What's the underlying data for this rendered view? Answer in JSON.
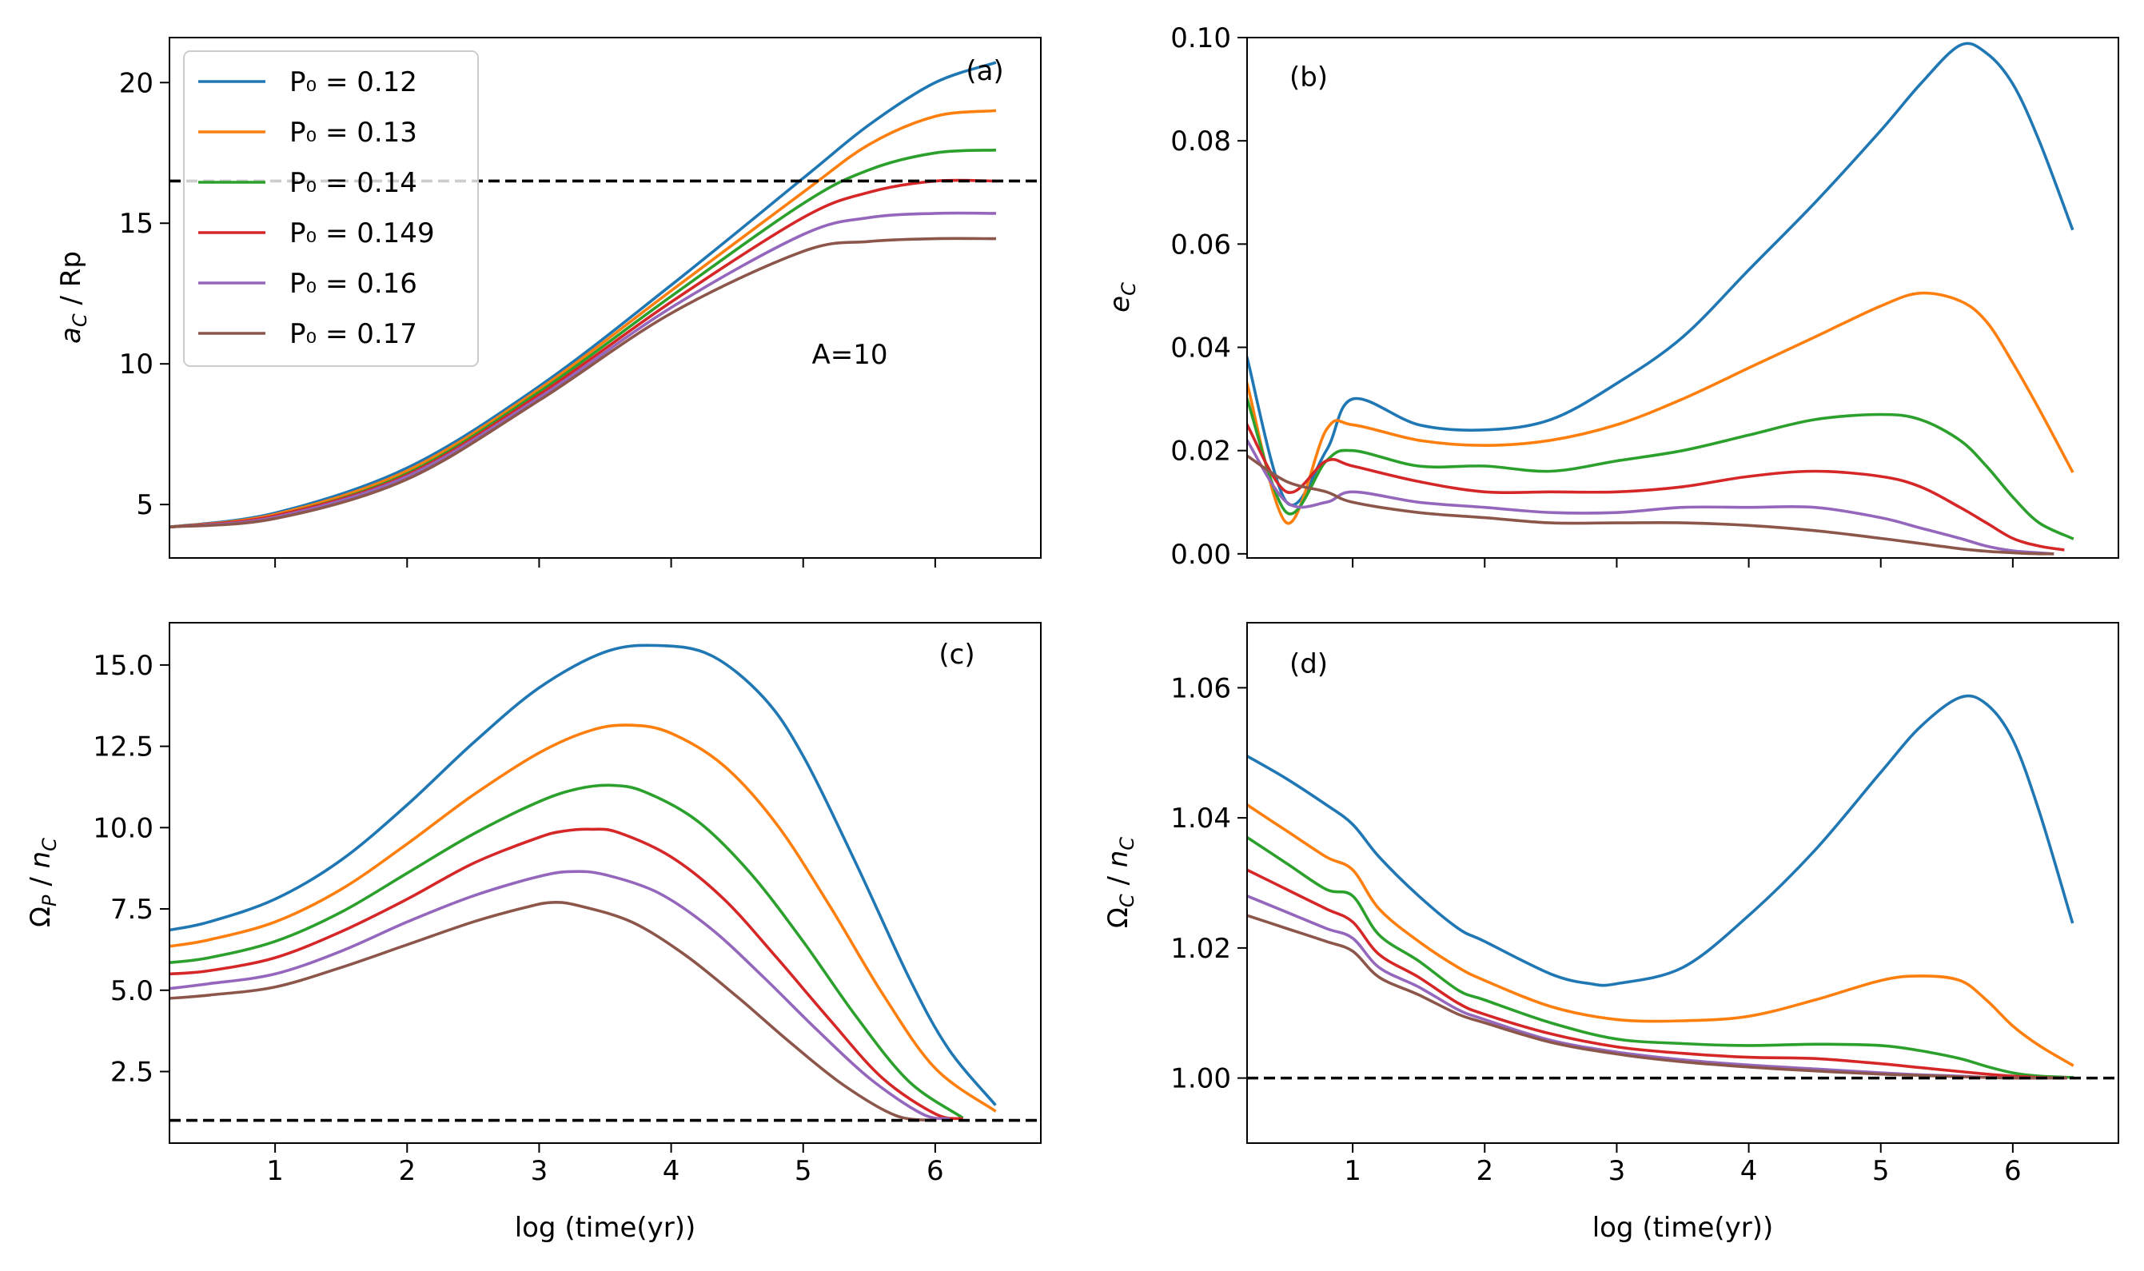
{
  "colors": {
    "P0=0.12": "#1f77b4",
    "P0=0.13": "#ff7f0e",
    "P0=0.14": "#2ca02c",
    "P0=0.149": "#d62728",
    "P0=0.16": "#9467bd",
    "P0=0.17": "#8c564b",
    "reference_line": "#000000"
  },
  "chart_data": [
    {
      "panel": "(a)",
      "type": "line",
      "annotation": "A=10",
      "xlabel": "",
      "ylabel": "a_C / Rp",
      "xlim": [
        0.2,
        6.8
      ],
      "ylim": [
        3.1,
        21.6
      ],
      "xticks": [
        1,
        2,
        3,
        4,
        5,
        6
      ],
      "xtick_labels": [
        "",
        "",
        "",
        "",
        "",
        ""
      ],
      "yticks": [
        5,
        10,
        15,
        20
      ],
      "ytick_labels": [
        "5",
        "10",
        "15",
        "20"
      ],
      "reference_line": {
        "y": 16.5,
        "style": "dashed"
      },
      "legend": {
        "placement": "top-left",
        "entries": [
          "P₀ = 0.12",
          "P₀ = 0.13",
          "P₀ = 0.14",
          "P₀ = 0.149",
          "P₀ = 0.16",
          "P₀ = 0.17"
        ]
      },
      "series": [
        {
          "name": "P₀ = 0.12",
          "x": [
            0.2,
            1,
            2,
            3,
            4,
            5,
            5.5,
            6,
            6.45
          ],
          "y": [
            4.2,
            4.7,
            6.3,
            9.2,
            12.8,
            16.6,
            18.5,
            20.0,
            20.7
          ]
        },
        {
          "name": "P₀ = 0.13",
          "x": [
            0.2,
            1,
            2,
            3,
            4,
            5,
            5.5,
            6,
            6.45
          ],
          "y": [
            4.2,
            4.65,
            6.2,
            9.1,
            12.6,
            16.1,
            17.8,
            18.8,
            19.0
          ]
        },
        {
          "name": "P₀ = 0.14",
          "x": [
            0.2,
            1,
            2,
            3,
            4,
            5,
            5.5,
            6,
            6.45
          ],
          "y": [
            4.2,
            4.6,
            6.1,
            9.0,
            12.4,
            15.7,
            16.9,
            17.5,
            17.6
          ]
        },
        {
          "name": "P₀ = 0.149",
          "x": [
            0.2,
            1,
            2,
            3,
            4,
            5,
            5.5,
            6,
            6.45
          ],
          "y": [
            4.2,
            4.6,
            6.05,
            8.9,
            12.2,
            15.2,
            16.1,
            16.5,
            16.5
          ]
        },
        {
          "name": "P₀ = 0.16",
          "x": [
            0.2,
            1,
            2,
            3,
            4,
            5,
            5.5,
            6,
            6.45
          ],
          "y": [
            4.2,
            4.55,
            6.0,
            8.8,
            12.0,
            14.6,
            15.2,
            15.35,
            15.35
          ]
        },
        {
          "name": "P₀ = 0.17",
          "x": [
            0.2,
            1,
            2,
            3,
            4,
            5,
            5.5,
            6,
            6.45
          ],
          "y": [
            4.2,
            4.5,
            5.9,
            8.7,
            11.8,
            14.0,
            14.35,
            14.45,
            14.45
          ]
        }
      ]
    },
    {
      "panel": "(b)",
      "type": "line",
      "xlabel": "",
      "ylabel": "e_C",
      "xlim": [
        0.2,
        6.8
      ],
      "ylim": [
        -0.0008,
        0.1
      ],
      "xticks": [
        1,
        2,
        3,
        4,
        5,
        6
      ],
      "xtick_labels": [
        "",
        "",
        "",
        "",
        "",
        ""
      ],
      "yticks": [
        0.0,
        0.02,
        0.04,
        0.06,
        0.08,
        0.1
      ],
      "ytick_labels": [
        "0.00",
        "0.02",
        "0.04",
        "0.06",
        "0.08",
        "0.10"
      ],
      "series": [
        {
          "name": "P₀ = 0.12",
          "x": [
            0.2,
            0.5,
            0.8,
            1.0,
            1.5,
            2.0,
            2.5,
            3.0,
            3.5,
            4.0,
            4.5,
            5.0,
            5.3,
            5.6,
            5.8,
            6.0,
            6.2,
            6.45
          ],
          "y": [
            0.038,
            0.01,
            0.02,
            0.03,
            0.025,
            0.024,
            0.026,
            0.033,
            0.042,
            0.055,
            0.068,
            0.082,
            0.091,
            0.0985,
            0.097,
            0.091,
            0.08,
            0.063
          ]
        },
        {
          "name": "P₀ = 0.13",
          "x": [
            0.2,
            0.5,
            0.8,
            1.0,
            1.5,
            2.0,
            2.5,
            3.0,
            3.5,
            4.0,
            4.5,
            5.0,
            5.3,
            5.6,
            5.8,
            6.0,
            6.2,
            6.45
          ],
          "y": [
            0.033,
            0.006,
            0.024,
            0.025,
            0.022,
            0.021,
            0.022,
            0.025,
            0.03,
            0.036,
            0.042,
            0.048,
            0.0505,
            0.049,
            0.045,
            0.037,
            0.028,
            0.016
          ]
        },
        {
          "name": "P₀ = 0.14",
          "x": [
            0.2,
            0.5,
            0.8,
            1.0,
            1.5,
            2.0,
            2.5,
            3.0,
            3.5,
            4.0,
            4.5,
            5.0,
            5.3,
            5.6,
            5.8,
            6.0,
            6.2,
            6.45
          ],
          "y": [
            0.03,
            0.008,
            0.018,
            0.02,
            0.017,
            0.017,
            0.016,
            0.018,
            0.02,
            0.023,
            0.026,
            0.027,
            0.026,
            0.022,
            0.017,
            0.011,
            0.006,
            0.003
          ]
        },
        {
          "name": "P₀ = 0.149",
          "x": [
            0.2,
            0.5,
            0.8,
            1.0,
            1.5,
            2.0,
            2.5,
            3.0,
            3.5,
            4.0,
            4.5,
            5.0,
            5.3,
            5.6,
            5.8,
            6.0,
            6.2,
            6.38
          ],
          "y": [
            0.025,
            0.012,
            0.018,
            0.017,
            0.014,
            0.012,
            0.012,
            0.012,
            0.013,
            0.015,
            0.016,
            0.015,
            0.013,
            0.009,
            0.006,
            0.003,
            0.0015,
            0.0008
          ]
        },
        {
          "name": "P₀ = 0.16",
          "x": [
            0.2,
            0.5,
            0.8,
            1.0,
            1.5,
            2.0,
            2.5,
            3.0,
            3.5,
            4.0,
            4.5,
            5.0,
            5.3,
            5.6,
            5.8,
            6.0,
            6.2,
            6.3
          ],
          "y": [
            0.022,
            0.01,
            0.01,
            0.012,
            0.01,
            0.009,
            0.008,
            0.008,
            0.009,
            0.009,
            0.009,
            0.007,
            0.005,
            0.003,
            0.0015,
            0.0006,
            0.0002,
            0.0
          ]
        },
        {
          "name": "P₀ = 0.17",
          "x": [
            0.2,
            0.5,
            0.8,
            1.0,
            1.5,
            2.0,
            2.5,
            3.0,
            3.5,
            4.0,
            4.5,
            5.0,
            5.3,
            5.6,
            5.8,
            6.0,
            6.2,
            6.3
          ],
          "y": [
            0.019,
            0.014,
            0.012,
            0.01,
            0.008,
            0.007,
            0.006,
            0.006,
            0.006,
            0.0055,
            0.0045,
            0.003,
            0.002,
            0.001,
            0.0005,
            0.0002,
            0.0,
            0.0
          ]
        }
      ]
    },
    {
      "panel": "(c)",
      "type": "line",
      "xlabel": "log (time(yr))",
      "ylabel": "Ω_P / n_C",
      "xlim": [
        0.2,
        6.8
      ],
      "ylim": [
        0.3,
        16.3
      ],
      "xticks": [
        1,
        2,
        3,
        4,
        5,
        6
      ],
      "xtick_labels": [
        "1",
        "2",
        "3",
        "4",
        "5",
        "6"
      ],
      "yticks": [
        2.5,
        5.0,
        7.5,
        10.0,
        12.5,
        15.0
      ],
      "ytick_labels": [
        "2.5",
        "5.0",
        "7.5",
        "10.0",
        "12.5",
        "15.0"
      ],
      "reference_line": {
        "y": 1.0,
        "style": "dashed"
      },
      "series": [
        {
          "name": "P₀ = 0.12",
          "x": [
            0.2,
            0.5,
            1.0,
            1.5,
            2.0,
            2.5,
            3.0,
            3.5,
            3.9,
            4.3,
            4.7,
            5.0,
            5.4,
            5.8,
            6.1,
            6.45
          ],
          "y": [
            6.85,
            7.1,
            7.8,
            9.0,
            10.7,
            12.6,
            14.3,
            15.4,
            15.6,
            15.3,
            14.0,
            12.2,
            8.9,
            5.4,
            3.2,
            1.5
          ]
        },
        {
          "name": "P₀ = 0.13",
          "x": [
            0.2,
            0.5,
            1.0,
            1.5,
            2.0,
            2.5,
            3.0,
            3.4,
            3.7,
            4.0,
            4.4,
            4.8,
            5.2,
            5.6,
            6.0,
            6.45
          ],
          "y": [
            6.35,
            6.55,
            7.1,
            8.1,
            9.5,
            11.0,
            12.3,
            13.0,
            13.15,
            12.9,
            11.9,
            10.1,
            7.6,
            4.9,
            2.6,
            1.3
          ]
        },
        {
          "name": "P₀ = 0.14",
          "x": [
            0.2,
            0.5,
            1.0,
            1.5,
            2.0,
            2.5,
            3.0,
            3.3,
            3.55,
            3.8,
            4.2,
            4.6,
            5.0,
            5.4,
            5.8,
            6.2
          ],
          "y": [
            5.85,
            6.0,
            6.5,
            7.4,
            8.6,
            9.8,
            10.8,
            11.2,
            11.3,
            11.1,
            10.2,
            8.6,
            6.5,
            4.2,
            2.2,
            1.1
          ]
        },
        {
          "name": "P₀ = 0.149",
          "x": [
            0.2,
            0.5,
            1.0,
            1.5,
            2.0,
            2.5,
            3.0,
            3.2,
            3.4,
            3.6,
            4.0,
            4.4,
            4.8,
            5.2,
            5.6,
            6.0,
            6.2
          ],
          "y": [
            5.5,
            5.6,
            6.0,
            6.8,
            7.8,
            8.9,
            9.7,
            9.9,
            9.95,
            9.85,
            9.1,
            7.8,
            6.0,
            4.1,
            2.3,
            1.2,
            1.05
          ]
        },
        {
          "name": "P₀ = 0.16",
          "x": [
            0.2,
            0.5,
            1.0,
            1.5,
            2.0,
            2.5,
            3.0,
            3.25,
            3.5,
            3.9,
            4.3,
            4.7,
            5.1,
            5.5,
            5.9,
            6.1
          ],
          "y": [
            5.05,
            5.2,
            5.5,
            6.2,
            7.1,
            7.9,
            8.5,
            8.65,
            8.55,
            8.0,
            6.9,
            5.4,
            3.8,
            2.3,
            1.2,
            1.05
          ]
        },
        {
          "name": "P₀ = 0.17",
          "x": [
            0.2,
            0.5,
            1.0,
            1.5,
            2.0,
            2.5,
            2.9,
            3.1,
            3.3,
            3.7,
            4.1,
            4.5,
            4.9,
            5.3,
            5.7,
            6.0
          ],
          "y": [
            4.75,
            4.85,
            5.1,
            5.7,
            6.4,
            7.1,
            7.55,
            7.7,
            7.6,
            7.1,
            6.1,
            4.8,
            3.4,
            2.1,
            1.15,
            1.0
          ]
        }
      ]
    },
    {
      "panel": "(d)",
      "type": "line",
      "xlabel": "log (time(yr))",
      "ylabel": "Ω_C / n_C",
      "xlim": [
        0.2,
        6.8
      ],
      "ylim": [
        0.99,
        1.07
      ],
      "xticks": [
        1,
        2,
        3,
        4,
        5,
        6
      ],
      "xtick_labels": [
        "1",
        "2",
        "3",
        "4",
        "5",
        "6"
      ],
      "yticks": [
        1.0,
        1.02,
        1.04,
        1.06
      ],
      "ytick_labels": [
        "1.00",
        "1.02",
        "1.04",
        "1.06"
      ],
      "reference_line": {
        "y": 1.0,
        "style": "dashed"
      },
      "series": [
        {
          "name": "P₀ = 0.12",
          "x": [
            0.2,
            0.5,
            0.8,
            1.0,
            1.2,
            1.5,
            1.8,
            2.0,
            2.5,
            2.8,
            3.0,
            3.5,
            4.0,
            4.5,
            5.0,
            5.3,
            5.6,
            5.8,
            6.0,
            6.2,
            6.45
          ],
          "y": [
            1.0495,
            1.046,
            1.042,
            1.039,
            1.034,
            1.028,
            1.023,
            1.021,
            1.016,
            1.0145,
            1.0145,
            1.017,
            1.025,
            1.035,
            1.047,
            1.054,
            1.0585,
            1.0575,
            1.052,
            1.041,
            1.024
          ]
        },
        {
          "name": "P₀ = 0.13",
          "x": [
            0.2,
            0.5,
            0.8,
            1.0,
            1.2,
            1.5,
            1.8,
            2.0,
            2.5,
            3.0,
            3.5,
            4.0,
            4.5,
            5.0,
            5.3,
            5.6,
            5.8,
            6.0,
            6.2,
            6.45
          ],
          "y": [
            1.042,
            1.038,
            1.034,
            1.032,
            1.026,
            1.021,
            1.017,
            1.015,
            1.011,
            1.009,
            1.0088,
            1.0095,
            1.012,
            1.015,
            1.0157,
            1.015,
            1.012,
            1.008,
            1.005,
            1.002
          ]
        },
        {
          "name": "P₀ = 0.14",
          "x": [
            0.2,
            0.5,
            0.8,
            1.0,
            1.2,
            1.5,
            1.8,
            2.0,
            2.5,
            3.0,
            3.5,
            4.0,
            4.5,
            5.0,
            5.3,
            5.6,
            5.8,
            6.0,
            6.2,
            6.45
          ],
          "y": [
            1.037,
            1.033,
            1.029,
            1.028,
            1.022,
            1.018,
            1.0135,
            1.012,
            1.0085,
            1.006,
            1.0053,
            1.005,
            1.0052,
            1.005,
            1.0042,
            1.003,
            1.0018,
            1.0008,
            1.0003,
            1.0001
          ]
        },
        {
          "name": "P₀ = 0.149",
          "x": [
            0.2,
            0.5,
            0.8,
            1.0,
            1.2,
            1.5,
            1.8,
            2.0,
            2.5,
            3.0,
            3.5,
            4.0,
            4.5,
            5.0,
            5.3,
            5.6,
            5.8,
            6.0,
            6.2,
            6.4
          ],
          "y": [
            1.032,
            1.029,
            1.026,
            1.024,
            1.019,
            1.0155,
            1.0115,
            1.0098,
            1.0068,
            1.0048,
            1.0038,
            1.0032,
            1.003,
            1.0022,
            1.0016,
            1.001,
            1.0006,
            1.0003,
            1.0001,
            1.0
          ]
        },
        {
          "name": "P₀ = 0.16",
          "x": [
            0.2,
            0.5,
            0.8,
            1.0,
            1.2,
            1.5,
            1.8,
            2.0,
            2.5,
            3.0,
            3.5,
            4.0,
            4.5,
            5.0,
            5.3,
            5.6,
            5.8,
            6.0,
            6.2,
            6.4
          ],
          "y": [
            1.028,
            1.0255,
            1.023,
            1.0215,
            1.017,
            1.014,
            1.0105,
            1.009,
            1.0058,
            1.004,
            1.0028,
            1.002,
            1.0014,
            1.0008,
            1.0005,
            1.0003,
            1.0001,
            1.0,
            1.0,
            1.0
          ]
        },
        {
          "name": "P₀ = 0.17",
          "x": [
            0.2,
            0.5,
            0.8,
            1.0,
            1.2,
            1.5,
            1.8,
            2.0,
            2.5,
            3.0,
            3.5,
            4.0,
            4.5,
            5.0,
            5.3,
            5.6,
            5.8,
            6.0,
            6.2,
            6.4
          ],
          "y": [
            1.025,
            1.023,
            1.021,
            1.0195,
            1.0155,
            1.0128,
            1.0098,
            1.0085,
            1.0055,
            1.0037,
            1.0025,
            1.0017,
            1.0011,
            1.0006,
            1.0004,
            1.0002,
            1.0001,
            1.0,
            1.0,
            1.0
          ]
        }
      ]
    }
  ]
}
